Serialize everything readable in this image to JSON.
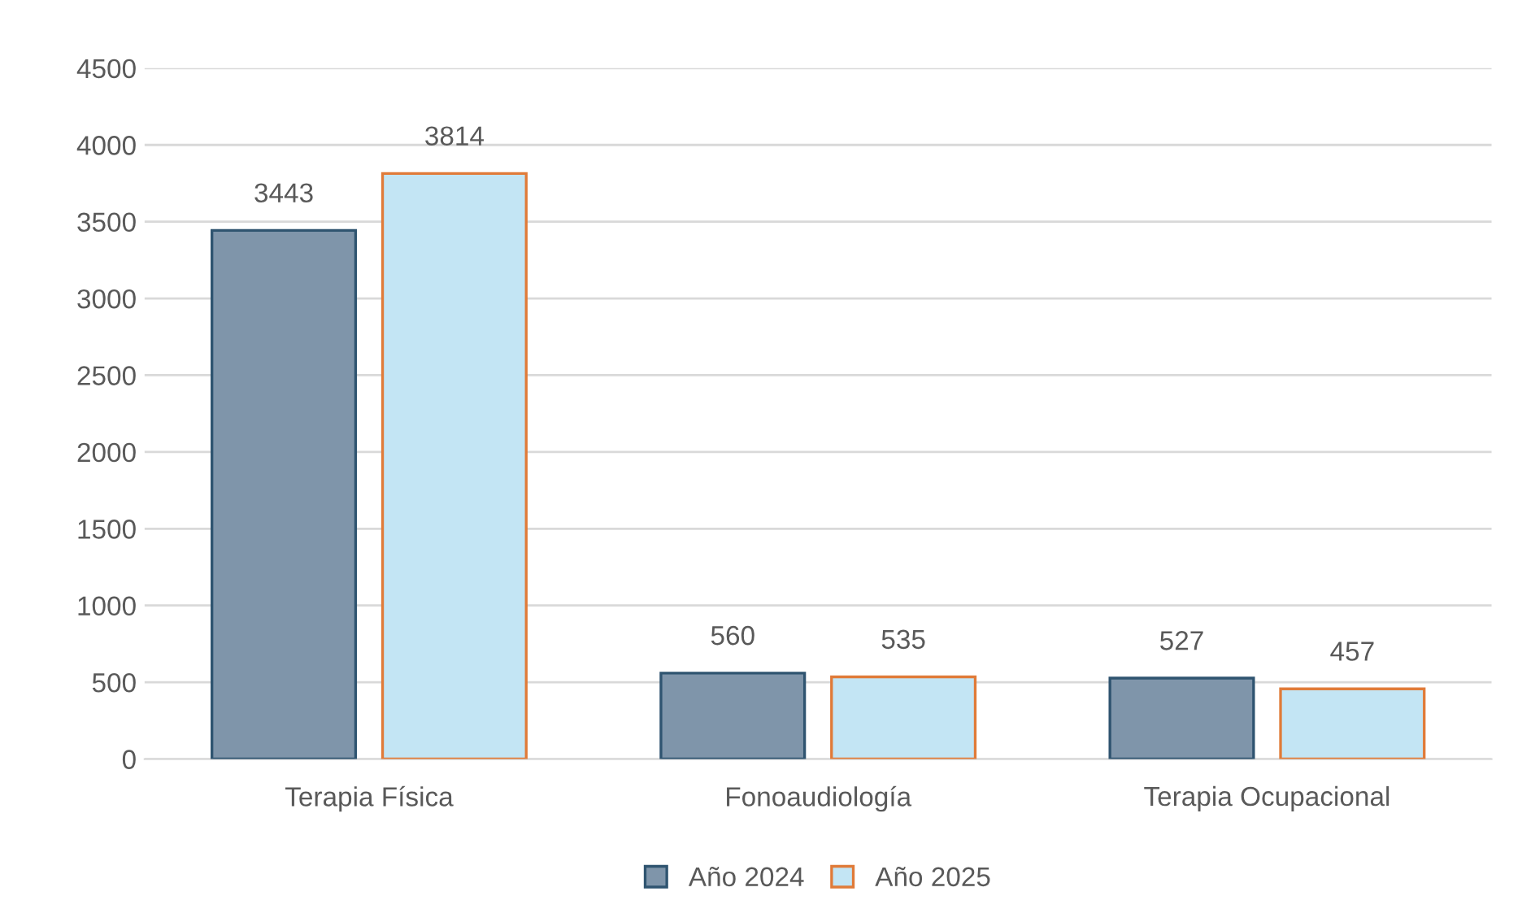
{
  "chart_data": {
    "type": "bar",
    "categories": [
      "Terapia Física",
      "Fonoaudiología",
      "Terapia Ocupacional"
    ],
    "series": [
      {
        "name": "Año 2024",
        "color": "#7f95aa",
        "values": [
          3443,
          560,
          527
        ]
      },
      {
        "name": "Año 2025",
        "color": "#c3e5f4",
        "values": [
          3814,
          535,
          457
        ]
      }
    ],
    "ylim": [
      0,
      4500
    ],
    "yticks": [
      0,
      500,
      1000,
      1500,
      2000,
      2500,
      3000,
      3500,
      4000,
      4500
    ],
    "grid": "y",
    "legend": "bottom",
    "data_labels": true
  }
}
